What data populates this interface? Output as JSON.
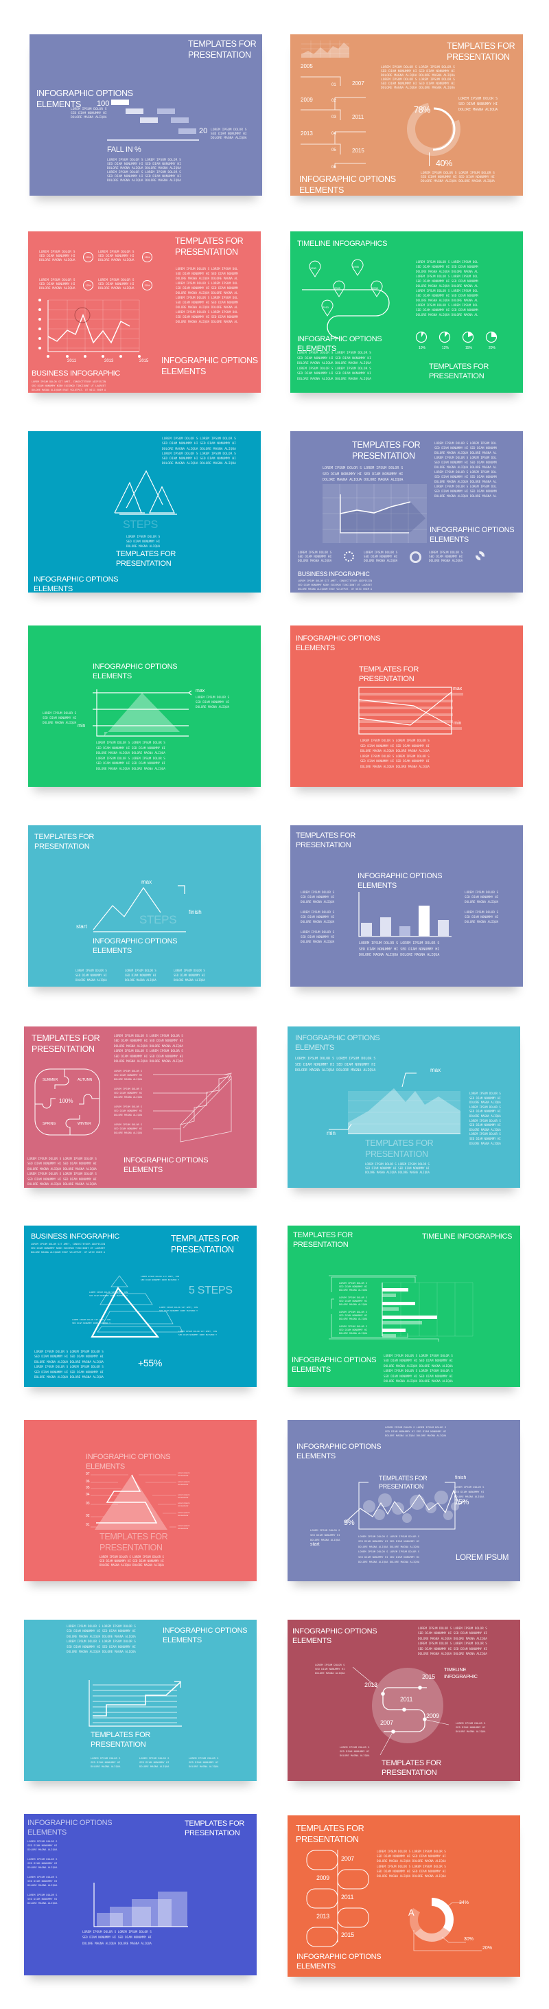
{
  "colors": [
    "#7a84b8",
    "#e49a70",
    "#ee7070",
    "#1cc870",
    "#04a0c0",
    "#7a84b8",
    "#1cc870",
    "#ef6a5e",
    "#4dbccf",
    "#7a84b8",
    "#d4687e",
    "#4dbccf",
    "#05a0c2",
    "#1cc870",
    "#ef6c6c",
    "#7a84b8",
    "#4dbccf",
    "#ae4e5e",
    "#4a58cf",
    "#ef6d45"
  ],
  "lorem": {
    "short": "LOREM IPSUM DOLOR S\nSED DIAM NONUMMY HI\nDOLORE MAGNA ALIQUA",
    "long": "LOREM IPSUM DOLOR S LOREM IPSUM DOLOR S\nSED DIAM NONUMMY HI SED DIAM NONUMMY HI\nDOLORE MAGNA ALIQUA DOLORE MAGNA ALIQUA",
    "long2": "LOREM IPSUM DOLOR S LOREM IPSUM DOLOR S\nSED DIAM NONUMMY HI SED DIAM NONUMMY HI\nDOLORE MAGNA ALIQUA DOLORE MAGNA ALIQUA\nLOREM IPSUM DOLOR S LOREM IPSUM DOLOR S\nSED DIAM NONUMMY HI SED DIAM NONUMMY HI\nDOLORE MAGNA ALIQUA DOLORE MAGNA ALIQUA",
    "long4": "LOREM IPSUM DOLOR S LOREM IPSUM DOL\nSED DIAM NONUMMY HI SED DIAM NONUMM\nDOLORE MAGNA ALIQUA DOLORE MAGNA AL\nLOREM IPSUM DOLOR S LOREM IPSUM DOL\nSED DIAM NONUMMY HI SED DIAM NONUMM\nDOLORE MAGNA ALIQUA DOLORE MAGNA AL\nLOREM IPSUM DOLOR S LOREM IPSUM DOL\nSED DIAM NONUMMY HI SED DIAM NONUMM\nDOLORE MAGNA ALIQUA DOLORE MAGNA AL\nLOREM IPSUM DOLOR S LOREM IPSUM DOL\nSED DIAM NONUMMY HI SED DIAM NONUMM\nDOLORE MAGNA ALIQUA DOLORE MAGNA AL",
    "short4": "LOREM IPSUM DOLOR S\nSED DIAM NONUMMY HI\nDOLORE MAGNA ALIQUA\nLOREM IPSUM DOLOR S\nSED DIAM NONUMMY HI\nDOLORE MAGNA ALIQUA\nLOREM IPSUM DOLOR S\nSED DIAM NONUMMY HI\nDOLORE MAGNA ALIQUA\nLOREM IPSUM DOLOR S\nSED DIAM NONUMMY HI\nDOLORE MAGNA ALIQUA",
    "business": "LOREM IPSUM DOLOR SIT AMET, CONSECTETUER ADIPISCIN\nSED DIAM NONUMMY NIBH EUISMOD TINCIDUNT UT LAOREET\nDOLORE MAGNA ALIQUAM ERAT VOLUTPAT. UT WISI ENIM A",
    "pyr": "LOREM IPSUM DOLOR SIT AMET, CON\nSED DIAM NONUMMY NIBH EUISMOD T",
    "tiny": "Lorem ipsum\nconsectetur"
  },
  "common": {
    "templates": "TEMPLATES FOR\nPRESENTATION",
    "infographic": "INFOGRAPHIC OPTIONS\nELEMENTS",
    "business": "BUSINESS INFOGRAPHIC",
    "timeline": "TIMELINE INFOGRAPHICS",
    "max": "max",
    "min": "min",
    "start": "start",
    "finish": "finish",
    "steps": "STEPS"
  },
  "s1": {
    "v100": "100",
    "v20": "20",
    "fall": "FALL IN %"
  },
  "s2": {
    "years": [
      "2005",
      "2007",
      "2009",
      "2011",
      "2013",
      "2015"
    ],
    "steps": [
      "01",
      "02",
      "03",
      "04",
      "05",
      "06"
    ],
    "p78": "78%",
    "p40": "40%"
  },
  "s3": {
    "badges": [
      "10%",
      "15%",
      "12%",
      "20%"
    ],
    "xt": [
      "2011",
      "2013",
      "2015"
    ]
  },
  "s4": {
    "pins": [
      "1990",
      "1995",
      "2005",
      "2000",
      "2010"
    ],
    "pies": [
      "10%",
      "12%",
      "15%",
      "20%"
    ]
  },
  "s11": {
    "seasons": [
      "SUMMER",
      "AUTUMN",
      "SPRING",
      "WINTER"
    ],
    "pct": "100%"
  },
  "s13": {
    "steps5": "5 STEPS",
    "plus": "+55%"
  },
  "s15": {
    "levels": [
      "07",
      "06",
      "05",
      "04",
      "03",
      "02",
      "01"
    ]
  },
  "s16": {
    "p15": "15%",
    "p9": "9%",
    "lorem_ipsum": "LOREM IPSUM"
  },
  "s18": {
    "head": "TIMELINE\nINFOGRAPHIC",
    "years": [
      "2015",
      "2013",
      "2011",
      "2009",
      "2007"
    ]
  },
  "s20": {
    "years": [
      "2007",
      "2009",
      "2011",
      "2013",
      "2015"
    ],
    "a": "A",
    "p34": "34%",
    "p30": "30%",
    "p20": "20%"
  }
}
